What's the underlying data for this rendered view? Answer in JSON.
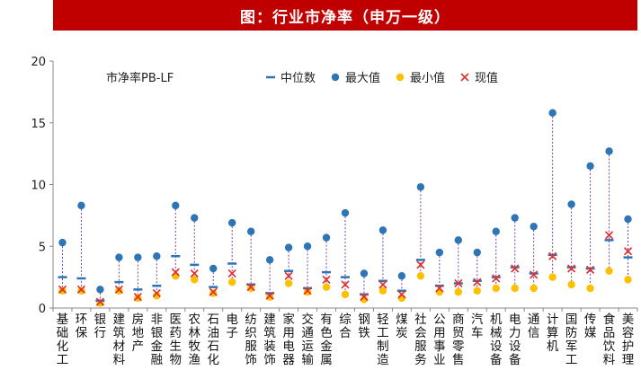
{
  "title": "图：行业市净率（申万一级）",
  "chart_data": {
    "type": "scatter",
    "ylabel": "市净率PB-LF",
    "ylim": [
      0,
      20
    ],
    "yticks": [
      0,
      5,
      10,
      15,
      20
    ],
    "categories": [
      "基础化工",
      "环保",
      "银行",
      "建筑材料",
      "房地产",
      "非银金融",
      "医药生物",
      "农林牧渔",
      "石油石化",
      "电子",
      "纺织服饰",
      "建筑装饰",
      "家用电器",
      "交通运输",
      "有色金属",
      "综合",
      "钢铁",
      "轻工制造",
      "煤炭",
      "社会服务",
      "公用事业",
      "商贸零售",
      "汽车",
      "机械设备",
      "电力设备",
      "通信",
      "计算机",
      "国防军工",
      "传媒",
      "食品饮料",
      "美容护理"
    ],
    "legend_position": "top",
    "series": [
      {
        "name": "中位数",
        "marker": "dash",
        "color": "#2e74b5",
        "values": [
          2.5,
          2.4,
          0.6,
          2.1,
          1.5,
          1.8,
          4.2,
          3.5,
          1.7,
          3.6,
          1.9,
          1.2,
          3.0,
          1.6,
          2.9,
          2.5,
          1.1,
          2.2,
          1.4,
          3.9,
          1.8,
          2.0,
          2.2,
          2.5,
          3.3,
          2.8,
          4.3,
          3.3,
          3.2,
          5.5,
          4.1
        ]
      },
      {
        "name": "最大值",
        "marker": "circle",
        "color": "#2e75b6",
        "values": [
          5.3,
          8.3,
          1.5,
          4.1,
          4.1,
          4.2,
          8.3,
          7.3,
          3.2,
          6.9,
          6.2,
          3.9,
          4.9,
          5.0,
          5.7,
          7.7,
          2.8,
          6.3,
          2.6,
          9.8,
          4.5,
          5.5,
          4.5,
          6.2,
          7.3,
          6.6,
          15.8,
          8.4,
          11.5,
          12.7,
          7.2
        ]
      },
      {
        "name": "最小值",
        "marker": "circle",
        "color": "#ffc000",
        "values": [
          1.4,
          1.4,
          0.4,
          1.4,
          0.8,
          1.0,
          2.6,
          2.3,
          1.2,
          2.1,
          1.6,
          0.9,
          2.0,
          1.3,
          1.7,
          1.1,
          0.7,
          1.4,
          0.8,
          2.6,
          1.3,
          1.3,
          1.4,
          1.6,
          1.6,
          1.6,
          2.5,
          1.9,
          1.6,
          3.0,
          2.3
        ]
      },
      {
        "name": "现值",
        "marker": "x",
        "color": "#e03030",
        "values": [
          1.5,
          1.5,
          0.5,
          1.5,
          0.9,
          1.2,
          2.9,
          2.8,
          1.3,
          2.8,
          1.7,
          1.0,
          2.6,
          1.4,
          2.3,
          1.9,
          0.9,
          1.9,
          1.1,
          3.5,
          1.6,
          2.0,
          2.1,
          2.4,
          3.2,
          2.7,
          4.2,
          3.2,
          3.1,
          5.9,
          4.6
        ]
      }
    ],
    "grid": false
  }
}
